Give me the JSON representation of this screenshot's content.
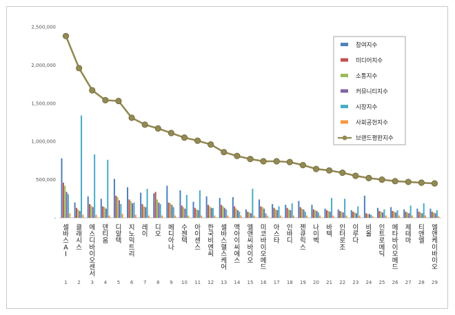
{
  "chart_data": {
    "type": "bar",
    "ylim": [
      0,
      2500000
    ],
    "yticks": [
      "-",
      "500,000",
      "1,000,000",
      "1,500,000",
      "2,000,000",
      "2,500,000"
    ],
    "legend_position": "top-right",
    "categories": [
      "셀바스AI",
      "클래시스",
      "에스디바이오센서",
      "덴티움",
      "디알텍",
      "지노믹트리",
      "레이",
      "디오",
      "메디아나",
      "수젠텍",
      "아이센스",
      "한국비엔씨",
      "셀바스헬스케어",
      "맥아이씨에스",
      "엘앤씨바이오",
      "미코바이오메드",
      "아스타",
      "인바디",
      "젠큐릭스",
      "나이벡",
      "바텍",
      "인터로조",
      "이루다",
      "비올",
      "인트로메딕",
      "메타바이오메드",
      "제테마",
      "티앤엘",
      "엘앤케이바이오"
    ],
    "indices": [
      "1",
      "2",
      "3",
      "4",
      "5",
      "6",
      "7",
      "8",
      "9",
      "10",
      "11",
      "12",
      "13",
      "14",
      "15",
      "16",
      "17",
      "18",
      "19",
      "20",
      "21",
      "22",
      "23",
      "24",
      "25",
      "26",
      "27",
      "28",
      "29"
    ],
    "series": [
      {
        "name": "참여지수",
        "color": "#4f81bd",
        "kind": "bar",
        "values": [
          780000,
          200000,
          280000,
          250000,
          510000,
          400000,
          330000,
          320000,
          420000,
          360000,
          210000,
          280000,
          260000,
          270000,
          110000,
          240000,
          180000,
          170000,
          220000,
          170000,
          120000,
          110000,
          100000,
          290000,
          130000,
          140000,
          110000,
          120000,
          120000
        ]
      },
      {
        "name": "미디어지수",
        "color": "#c0504d",
        "kind": "bar",
        "values": [
          460000,
          130000,
          180000,
          150000,
          290000,
          240000,
          180000,
          340000,
          200000,
          160000,
          130000,
          170000,
          170000,
          150000,
          80000,
          150000,
          130000,
          130000,
          140000,
          110000,
          100000,
          90000,
          80000,
          60000,
          90000,
          90000,
          80000,
          80000,
          80000
        ]
      },
      {
        "name": "소통지수",
        "color": "#9bbb59",
        "kind": "bar",
        "values": [
          420000,
          110000,
          160000,
          140000,
          270000,
          220000,
          150000,
          240000,
          190000,
          140000,
          110000,
          150000,
          150000,
          120000,
          70000,
          140000,
          110000,
          110000,
          120000,
          100000,
          90000,
          80000,
          70000,
          50000,
          80000,
          80000,
          70000,
          70000,
          70000
        ]
      },
      {
        "name": "커뮤니티지수",
        "color": "#8064a2",
        "kind": "bar",
        "values": [
          340000,
          90000,
          140000,
          120000,
          230000,
          190000,
          140000,
          200000,
          170000,
          120000,
          100000,
          130000,
          130000,
          100000,
          60000,
          120000,
          100000,
          100000,
          110000,
          90000,
          80000,
          70000,
          60000,
          50000,
          70000,
          70000,
          60000,
          60000,
          60000
        ]
      },
      {
        "name": "시장지수",
        "color": "#4bacc6",
        "kind": "bar",
        "values": [
          310000,
          1340000,
          830000,
          760000,
          180000,
          200000,
          380000,
          180000,
          140000,
          300000,
          360000,
          130000,
          110000,
          80000,
          380000,
          60000,
          150000,
          190000,
          80000,
          70000,
          260000,
          250000,
          150000,
          40000,
          110000,
          100000,
          160000,
          190000,
          100000
        ]
      },
      {
        "name": "사회공헌지수",
        "color": "#f79646",
        "kind": "bar",
        "values": [
          60000,
          40000,
          40000,
          30000,
          50000,
          40000,
          30000,
          30000,
          30000,
          30000,
          30000,
          30000,
          30000,
          30000,
          30000,
          30000,
          30000,
          30000,
          30000,
          30000,
          30000,
          30000,
          30000,
          20000,
          30000,
          30000,
          30000,
          30000,
          20000
        ]
      },
      {
        "name": "브랜드평판지수",
        "color": "#938953",
        "kind": "line",
        "values": [
          2380000,
          1960000,
          1670000,
          1540000,
          1530000,
          1310000,
          1220000,
          1170000,
          1110000,
          1050000,
          1010000,
          960000,
          860000,
          810000,
          770000,
          740000,
          740000,
          730000,
          690000,
          640000,
          620000,
          590000,
          550000,
          520000,
          500000,
          480000,
          470000,
          460000,
          450000
        ]
      }
    ]
  }
}
